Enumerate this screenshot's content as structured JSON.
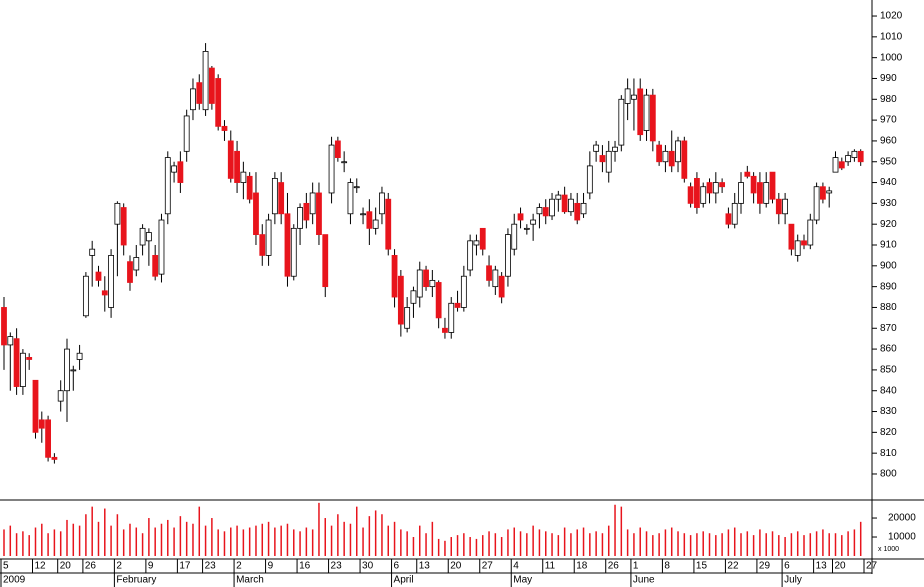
{
  "chart_data": {
    "type": "candlestick",
    "categories": [
      "5",
      null,
      null,
      null,
      null,
      "12",
      null,
      null,
      null,
      "20",
      null,
      null,
      null,
      "26",
      null,
      null,
      null,
      null,
      "2",
      null,
      null,
      null,
      null,
      "9",
      null,
      null,
      null,
      null,
      "17",
      null,
      null,
      null,
      "23",
      null,
      null,
      null,
      null,
      "2",
      null,
      null,
      null,
      null,
      "9",
      null,
      null,
      null,
      null,
      "16",
      null,
      null,
      null,
      null,
      "23",
      null,
      null,
      null,
      null,
      "30",
      null,
      null,
      null,
      null,
      "6",
      null,
      null,
      null,
      "13",
      null,
      null,
      null,
      null,
      "20",
      null,
      null,
      null,
      null,
      "27",
      null,
      null,
      null,
      null,
      "4",
      null,
      null,
      null,
      null,
      "11",
      null,
      null,
      null,
      null,
      "18",
      null,
      null,
      null,
      null,
      "26",
      null,
      null,
      null,
      "1",
      null,
      null,
      null,
      null,
      "8",
      null,
      null,
      null,
      null,
      "15",
      null,
      null,
      null,
      null,
      "22",
      null,
      null,
      null,
      null,
      "29",
      null,
      null,
      null,
      "6",
      null,
      null,
      null,
      null,
      "13",
      null,
      null,
      "20",
      null,
      null,
      null,
      null,
      "27"
    ],
    "months": [
      "2009",
      null,
      null,
      null,
      null,
      null,
      null,
      null,
      null,
      null,
      null,
      null,
      null,
      null,
      null,
      null,
      null,
      null,
      "February",
      null,
      null,
      null,
      null,
      null,
      null,
      null,
      null,
      null,
      null,
      null,
      null,
      null,
      null,
      null,
      null,
      null,
      null,
      "March",
      null,
      null,
      null,
      null,
      null,
      null,
      null,
      null,
      null,
      null,
      null,
      null,
      null,
      null,
      null,
      null,
      null,
      null,
      null,
      null,
      null,
      null,
      null,
      null,
      "April",
      null,
      null,
      null,
      null,
      null,
      null,
      null,
      null,
      null,
      null,
      null,
      null,
      null,
      null,
      null,
      null,
      null,
      null,
      "May",
      null,
      null,
      null,
      null,
      null,
      null,
      null,
      null,
      null,
      null,
      null,
      null,
      null,
      null,
      null,
      null,
      null,
      null,
      "June",
      null,
      null,
      null,
      null,
      null,
      null,
      null,
      null,
      null,
      null,
      null,
      null,
      null,
      null,
      null,
      null,
      null,
      null,
      null,
      null,
      null,
      null,
      null,
      "July",
      null,
      null,
      null,
      null,
      null,
      null,
      null,
      null,
      null,
      null,
      null,
      null,
      null
    ],
    "open": [
      880,
      862,
      865,
      842,
      856,
      845,
      826,
      826,
      808,
      835,
      840,
      850,
      855,
      876,
      905,
      897,
      888,
      880,
      920,
      928,
      902,
      898,
      910,
      912,
      905,
      896,
      925,
      945,
      950,
      955,
      975,
      988,
      975,
      995,
      990,
      967,
      960,
      955,
      940,
      943,
      935,
      915,
      905,
      925,
      940,
      925,
      895,
      918,
      930,
      925,
      935,
      915,
      935,
      960,
      950,
      925,
      938,
      925,
      926,
      918,
      925,
      932,
      905,
      895,
      870,
      882,
      885,
      898,
      890,
      892,
      870,
      868,
      882,
      880,
      898,
      910,
      918,
      900,
      890,
      895,
      895,
      908,
      925,
      918,
      920,
      925,
      928,
      924,
      932,
      934,
      926,
      930,
      925,
      935,
      955,
      953,
      945,
      955,
      958,
      978,
      980,
      985,
      965,
      982,
      958,
      950,
      955,
      950,
      960,
      938,
      942,
      930,
      940,
      935,
      940,
      925,
      920,
      930,
      945,
      943,
      940,
      930,
      945,
      932,
      925,
      920,
      905,
      912,
      910,
      922,
      938,
      935,
      945,
      950,
      950,
      952,
      955,
      null
    ],
    "high": [
      885,
      868,
      870,
      860,
      858,
      845,
      830,
      828,
      810,
      845,
      865,
      852,
      862,
      897,
      912,
      900,
      895,
      908,
      931,
      930,
      905,
      910,
      920,
      918,
      910,
      925,
      955,
      950,
      955,
      975,
      990,
      992,
      1007,
      996,
      992,
      970,
      965,
      960,
      950,
      945,
      945,
      920,
      925,
      945,
      945,
      935,
      920,
      930,
      935,
      940,
      940,
      915,
      962,
      962,
      955,
      942,
      942,
      928,
      932,
      928,
      938,
      935,
      908,
      898,
      885,
      890,
      902,
      900,
      898,
      893,
      875,
      885,
      888,
      900,
      915,
      915,
      918,
      905,
      900,
      897,
      918,
      925,
      928,
      920,
      925,
      930,
      932,
      935,
      936,
      938,
      935,
      935,
      935,
      955,
      960,
      958,
      960,
      960,
      982,
      990,
      990,
      990,
      985,
      985,
      960,
      958,
      965,
      962,
      962,
      940,
      945,
      940,
      942,
      945,
      942,
      928,
      935,
      945,
      948,
      945,
      945,
      945,
      945,
      935,
      935,
      920,
      915,
      915,
      925,
      940,
      940,
      938,
      955,
      952,
      955,
      956,
      956,
      null
    ],
    "low": [
      850,
      840,
      838,
      838,
      850,
      817,
      815,
      806,
      805,
      830,
      825,
      840,
      850,
      875,
      890,
      890,
      878,
      875,
      895,
      905,
      888,
      895,
      905,
      900,
      893,
      892,
      920,
      940,
      935,
      950,
      970,
      975,
      972,
      975,
      965,
      960,
      940,
      935,
      932,
      930,
      910,
      900,
      900,
      920,
      920,
      890,
      893,
      910,
      918,
      920,
      910,
      885,
      930,
      950,
      945,
      920,
      935,
      920,
      910,
      915,
      920,
      905,
      880,
      866,
      868,
      875,
      880,
      888,
      885,
      870,
      865,
      865,
      878,
      878,
      895,
      905,
      905,
      890,
      886,
      882,
      890,
      905,
      918,
      915,
      912,
      918,
      920,
      922,
      926,
      925,
      924,
      920,
      923,
      932,
      950,
      945,
      940,
      950,
      955,
      970,
      965,
      960,
      960,
      955,
      948,
      945,
      945,
      945,
      940,
      928,
      925,
      928,
      930,
      930,
      935,
      918,
      918,
      925,
      942,
      930,
      925,
      928,
      930,
      920,
      920,
      905,
      902,
      908,
      908,
      920,
      930,
      928,
      945,
      946,
      948,
      950,
      948,
      null
    ],
    "close": [
      862,
      866,
      842,
      858,
      855,
      820,
      822,
      808,
      807,
      840,
      860,
      850,
      858,
      895,
      908,
      893,
      886,
      905,
      930,
      910,
      892,
      904,
      918,
      916,
      895,
      922,
      952,
      948,
      940,
      972,
      985,
      978,
      1003,
      978,
      967,
      965,
      942,
      940,
      945,
      932,
      915,
      905,
      922,
      942,
      925,
      895,
      918,
      928,
      922,
      935,
      915,
      890,
      958,
      952,
      950,
      940,
      938,
      925,
      918,
      922,
      935,
      908,
      885,
      872,
      880,
      888,
      898,
      890,
      893,
      875,
      868,
      882,
      880,
      895,
      912,
      912,
      908,
      893,
      898,
      885,
      915,
      920,
      922,
      918,
      922,
      928,
      924,
      932,
      934,
      926,
      932,
      922,
      930,
      948,
      958,
      950,
      955,
      957,
      980,
      985,
      982,
      963,
      982,
      960,
      950,
      955,
      948,
      960,
      942,
      930,
      928,
      938,
      935,
      940,
      938,
      920,
      930,
      940,
      943,
      935,
      930,
      940,
      932,
      925,
      932,
      908,
      912,
      910,
      922,
      938,
      932,
      936,
      952,
      947,
      953,
      955,
      950,
      null
    ],
    "volume": [
      14000,
      16000,
      12000,
      13000,
      11000,
      15000,
      17000,
      12000,
      14000,
      13000,
      19000,
      17000,
      16000,
      22000,
      26000,
      18000,
      25000,
      16000,
      22000,
      14000,
      17000,
      15000,
      12000,
      20000,
      15000,
      17000,
      19000,
      15000,
      21000,
      18000,
      17000,
      26000,
      16000,
      20000,
      14000,
      13000,
      15000,
      16000,
      14000,
      15000,
      16000,
      17000,
      18000,
      15000,
      16000,
      17000,
      14000,
      13000,
      15000,
      14000,
      28000,
      20000,
      16000,
      22000,
      18000,
      17000,
      26000,
      15000,
      21000,
      24000,
      22000,
      16000,
      18000,
      14000,
      13000,
      10000,
      16000,
      12000,
      18000,
      9000,
      8000,
      10000,
      11000,
      12000,
      10000,
      9000,
      11000,
      13000,
      12000,
      10000,
      14000,
      15000,
      13000,
      12000,
      16000,
      14000,
      13000,
      12000,
      11000,
      15000,
      12000,
      14000,
      15000,
      12000,
      13000,
      12000,
      16000,
      27000,
      26000,
      14000,
      12000,
      15000,
      13000,
      11000,
      12000,
      14000,
      15000,
      13000,
      12000,
      11000,
      12000,
      13000,
      12000,
      11000,
      12000,
      14000,
      15000,
      12000,
      13000,
      11000,
      14000,
      12000,
      13000,
      11000,
      10000,
      12000,
      13000,
      11000,
      12000,
      13000,
      14000,
      12000,
      12000,
      11000,
      13000,
      14000,
      18000,
      null
    ],
    "up_color": "#ffffff",
    "down_color": "#e8141c",
    "volume_color": "#e8141c",
    "ylim": [
      787.5,
      1027.7
    ],
    "yticks": [
      800,
      810,
      820,
      830,
      840,
      850,
      860,
      870,
      880,
      890,
      900,
      910,
      920,
      930,
      940,
      950,
      960,
      970,
      980,
      990,
      1000,
      1010,
      1020
    ],
    "volume_ylim": [
      0,
      29500
    ],
    "volume_yticks": [
      10000,
      20000
    ],
    "volume_unit_label": "x 1000"
  }
}
